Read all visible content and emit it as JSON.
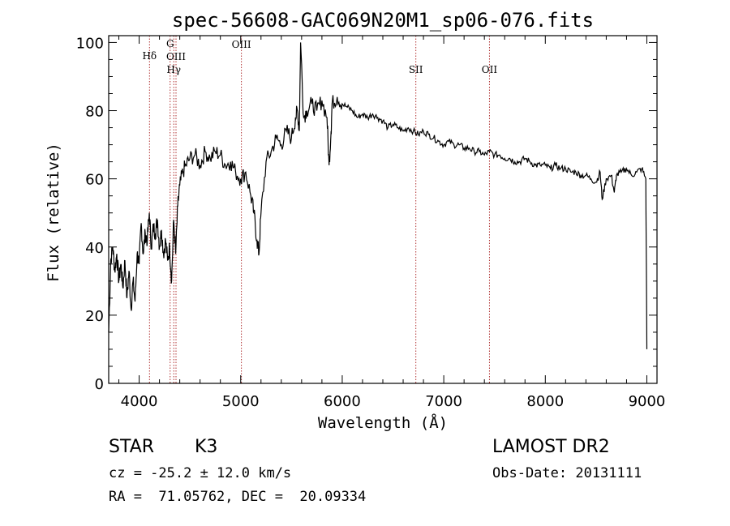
{
  "chart_data": {
    "type": "line",
    "title": "spec-56608-GAC069N20M1_sp06-076.fits",
    "xlabel": "Wavelength (Å)",
    "ylabel": "Flux (relative)",
    "xlim": [
      3700,
      9100
    ],
    "ylim": [
      0,
      102
    ],
    "xticks": [
      4000,
      5000,
      6000,
      7000,
      8000,
      9000
    ],
    "yticks": [
      0,
      20,
      40,
      60,
      80,
      100
    ],
    "grid": false,
    "series": [
      {
        "x": [
          3700,
          3720,
          3740,
          3760,
          3780,
          3800,
          3820,
          3840,
          3860,
          3880,
          3900,
          3920,
          3940,
          3960,
          3980,
          4000,
          4020,
          4040,
          4060,
          4080,
          4100,
          4120,
          4140,
          4160,
          4180,
          4200,
          4220,
          4240,
          4260,
          4280,
          4300,
          4320,
          4340,
          4360,
          4380,
          4400,
          4430,
          4460,
          4500,
          4550,
          4600,
          4650,
          4700,
          4750,
          4800,
          4850,
          4900,
          4950,
          5000,
          5050,
          5100,
          5130,
          5160,
          5180,
          5200,
          5250,
          5300,
          5350,
          5400,
          5450,
          5500,
          5540,
          5560,
          5577,
          5590,
          5620,
          5650,
          5700,
          5750,
          5800,
          5850,
          5870,
          5890,
          5900,
          5950,
          6000,
          6050,
          6100,
          6150,
          6200,
          6250,
          6300,
          6350,
          6400,
          6450,
          6500,
          6550,
          6600,
          6650,
          6700,
          6750,
          6800,
          6850,
          6900,
          6950,
          7000,
          7050,
          7100,
          7150,
          7200,
          7250,
          7300,
          7350,
          7400,
          7450,
          7500,
          7550,
          7600,
          7650,
          7700,
          7750,
          7800,
          7850,
          7900,
          7950,
          8000,
          8050,
          8100,
          8150,
          8200,
          8250,
          8300,
          8350,
          8400,
          8450,
          8500,
          8540,
          8560,
          8600,
          8650,
          8680,
          8700,
          8750,
          8800,
          8850,
          8900,
          8950,
          8990,
          9000
        ],
        "values": [
          15,
          36,
          40,
          33,
          38,
          30,
          35,
          28,
          36,
          25,
          33,
          22,
          30,
          24,
          38,
          35,
          47,
          38,
          44,
          42,
          50,
          40,
          46,
          44,
          48,
          40,
          45,
          38,
          42,
          36,
          40,
          30,
          48,
          38,
          52,
          58,
          62,
          64,
          66,
          67,
          64,
          68,
          66,
          68,
          67,
          64,
          65,
          62,
          60,
          62,
          55,
          50,
          42,
          38,
          50,
          65,
          68,
          72,
          70,
          74,
          72,
          78,
          80,
          74,
          100,
          78,
          80,
          82,
          80,
          83,
          78,
          64,
          74,
          82,
          84,
          82,
          81,
          80,
          78,
          79,
          78,
          79,
          78,
          77,
          75,
          76,
          75,
          74,
          75,
          74,
          73,
          74,
          73,
          72,
          71,
          70,
          71,
          70,
          70,
          69,
          69,
          68,
          68,
          67,
          68,
          67,
          67,
          66,
          66,
          65,
          65,
          66,
          65,
          64,
          64,
          64,
          63,
          64,
          63,
          63,
          62,
          62,
          61,
          61,
          60,
          59,
          62,
          54,
          60,
          61,
          56,
          61,
          62,
          63,
          61,
          62,
          63,
          60,
          10
        ]
      }
    ],
    "emission_lines": [
      {
        "label": "Hδ",
        "x": 4102
      },
      {
        "label": "G",
        "x": 4305
      },
      {
        "label": "OIII",
        "x": 4363
      },
      {
        "label": "Hγ",
        "x": 4341
      },
      {
        "label": "OIII",
        "x": 5007
      },
      {
        "label": "SII",
        "x": 6725
      },
      {
        "label": "OII",
        "x": 7450
      }
    ],
    "line_color": "#000000",
    "marker_color": "#b03030"
  },
  "info": {
    "object_class": "STAR",
    "subclass": "K3",
    "survey": "LAMOST DR2",
    "redshift": "cz = -25.2 ± 12.0 km/s",
    "obs_date": "Obs-Date: 20131111",
    "coords": "RA =  71.05762, DEC =  20.09334"
  }
}
